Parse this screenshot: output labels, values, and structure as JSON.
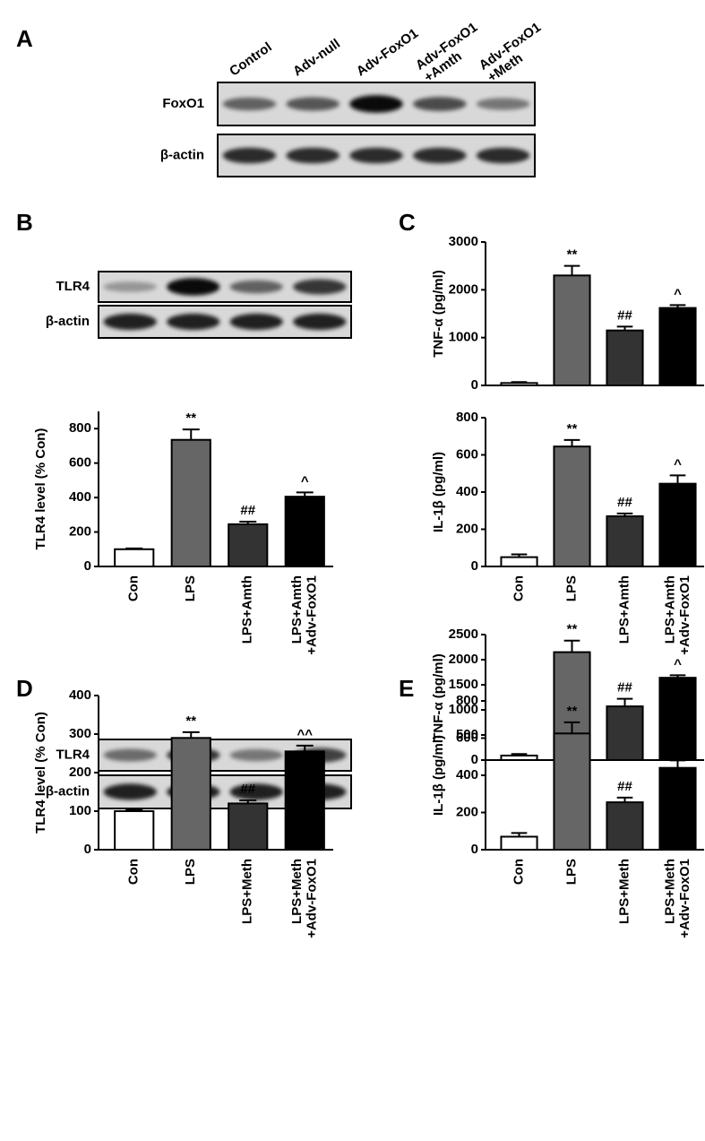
{
  "blots": [
    {
      "label": "A",
      "lanes": [
        "Control",
        "Adv-null",
        "Adv-FoxO1",
        "Adv-FoxO1\n+Amth",
        "Adv-FoxO1\n+Meth"
      ],
      "rows": [
        "FoxO1",
        "β-actin"
      ]
    },
    {
      "label": "B",
      "rows": [
        "TLR4",
        "β-actin"
      ]
    },
    {
      "label": "D",
      "rows": [
        "TLR4",
        "β-actin"
      ]
    }
  ],
  "chart_data": [
    {
      "type": "bar",
      "ylabel": "TLR4 level (% Con)",
      "categories": [
        "Con",
        "LPS",
        "LPS+Amth",
        "LPS+Amth\n+Adv-FoxO1"
      ],
      "values": [
        100,
        735,
        245,
        405
      ],
      "errors": [
        5,
        60,
        15,
        25
      ],
      "colors": [
        "#ffffff",
        "#666666",
        "#333333",
        "#000000"
      ],
      "annotations": [
        null,
        "**",
        "##",
        "^"
      ],
      "ylim": [
        0,
        900
      ],
      "yticks": [
        0,
        200,
        400,
        600,
        800
      ]
    },
    {
      "type": "bar",
      "label": "C",
      "ylabel": "TNF-α (pg/ml)",
      "values": [
        50,
        2300,
        1150,
        1620
      ],
      "errors": [
        20,
        200,
        80,
        60
      ],
      "colors": [
        "#ffffff",
        "#666666",
        "#333333",
        "#000000"
      ],
      "annotations": [
        null,
        "**",
        "##",
        "^"
      ],
      "ylim": [
        0,
        3000
      ],
      "yticks": [
        0,
        1000,
        2000,
        3000
      ]
    },
    {
      "type": "bar",
      "ylabel": "IL-1β (pg/ml)",
      "categories": [
        "Con",
        "LPS",
        "LPS+Amth",
        "LPS+Amth\n+Adv-FoxO1"
      ],
      "values": [
        50,
        645,
        270,
        445
      ],
      "errors": [
        15,
        35,
        15,
        45
      ],
      "colors": [
        "#ffffff",
        "#666666",
        "#333333",
        "#000000"
      ],
      "annotations": [
        null,
        "**",
        "##",
        "^"
      ],
      "ylim": [
        0,
        800
      ],
      "yticks": [
        0,
        200,
        400,
        600,
        800
      ]
    },
    {
      "type": "bar",
      "ylabel": "TLR4 level (% Con)",
      "categories": [
        "Con",
        "LPS",
        "LPS+Meth",
        "LPS+Meth\n+Adv-FoxO1"
      ],
      "values": [
        100,
        290,
        120,
        255
      ],
      "errors": [
        3,
        15,
        8,
        15
      ],
      "colors": [
        "#ffffff",
        "#666666",
        "#333333",
        "#000000"
      ],
      "annotations": [
        null,
        "**",
        "##",
        "^^"
      ],
      "ylim": [
        0,
        400
      ],
      "yticks": [
        0,
        100,
        200,
        300,
        400
      ]
    },
    {
      "type": "bar",
      "label": "E",
      "ylabel": "TNF-α (pg/ml)",
      "values": [
        90,
        2150,
        1070,
        1640
      ],
      "errors": [
        30,
        230,
        150,
        50
      ],
      "colors": [
        "#ffffff",
        "#666666",
        "#333333",
        "#000000"
      ],
      "annotations": [
        null,
        "**",
        "##",
        "^"
      ],
      "ylim": [
        0,
        2500
      ],
      "yticks": [
        0,
        500,
        1000,
        1500,
        2000,
        2500
      ]
    },
    {
      "type": "bar",
      "ylabel": "IL-1β (pg/ml)",
      "categories": [
        "Con",
        "LPS",
        "LPS+Meth",
        "LPS+Meth\n+Adv-FoxO1"
      ],
      "values": [
        70,
        625,
        255,
        440
      ],
      "errors": [
        20,
        60,
        25,
        40
      ],
      "colors": [
        "#ffffff",
        "#666666",
        "#333333",
        "#000000"
      ],
      "annotations": [
        null,
        "**",
        "##",
        "^"
      ],
      "ylim": [
        0,
        800
      ],
      "yticks": [
        0,
        200,
        400,
        600,
        800
      ]
    }
  ]
}
